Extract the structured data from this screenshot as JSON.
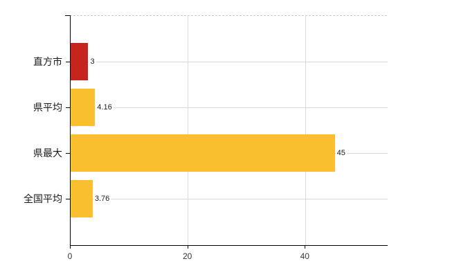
{
  "chart_data": {
    "type": "bar",
    "orientation": "horizontal",
    "categories": [
      "直方市",
      "県平均",
      "県最大",
      "全国平均"
    ],
    "values": [
      3,
      4.16,
      45,
      3.76
    ],
    "value_labels": [
      "3",
      "4.16",
      "45",
      "3.76"
    ],
    "bar_colors": [
      "#c6251d",
      "#f9bf2f",
      "#f9bf2f",
      "#f9bf2f"
    ],
    "xlim": [
      0,
      54
    ],
    "xticks": [
      0,
      20,
      40
    ],
    "xtick_labels": [
      "0",
      "20",
      "40"
    ],
    "grid": true,
    "legend_position": "none",
    "colors": {
      "background": "#ffffff",
      "axis": "#000000",
      "grid_vertical": "#dcdcdc",
      "grid_horizontal": "#d6dad2",
      "top_border": "#c9c9c9",
      "text": "#1a1a1a"
    }
  }
}
